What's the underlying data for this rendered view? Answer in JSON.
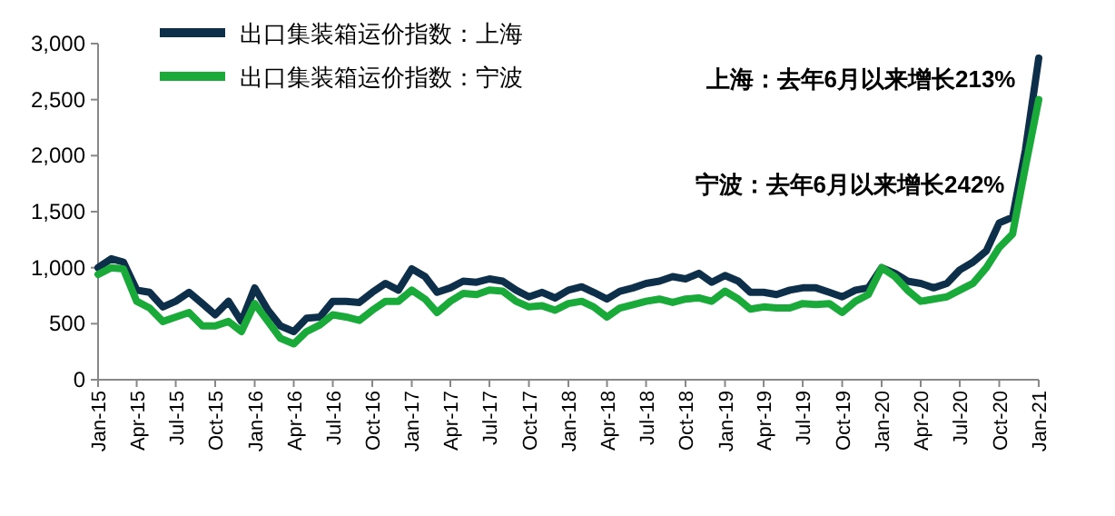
{
  "chart_data": {
    "type": "line",
    "x": [
      "2015-01",
      "2015-02",
      "2015-03",
      "2015-04",
      "2015-05",
      "2015-06",
      "2015-07",
      "2015-08",
      "2015-09",
      "2015-10",
      "2015-11",
      "2015-12",
      "2016-01",
      "2016-02",
      "2016-03",
      "2016-04",
      "2016-05",
      "2016-06",
      "2016-07",
      "2016-08",
      "2016-09",
      "2016-10",
      "2016-11",
      "2016-12",
      "2017-01",
      "2017-02",
      "2017-03",
      "2017-04",
      "2017-05",
      "2017-06",
      "2017-07",
      "2017-08",
      "2017-09",
      "2017-10",
      "2017-11",
      "2017-12",
      "2018-01",
      "2018-02",
      "2018-03",
      "2018-04",
      "2018-05",
      "2018-06",
      "2018-07",
      "2018-08",
      "2018-09",
      "2018-10",
      "2018-11",
      "2018-12",
      "2019-01",
      "2019-02",
      "2019-03",
      "2019-04",
      "2019-05",
      "2019-06",
      "2019-07",
      "2019-08",
      "2019-09",
      "2019-10",
      "2019-11",
      "2019-12",
      "2020-01",
      "2020-02",
      "2020-03",
      "2020-04",
      "2020-05",
      "2020-06",
      "2020-07",
      "2020-08",
      "2020-09",
      "2020-10",
      "2020-11",
      "2020-12",
      "2021-01"
    ],
    "series": [
      {
        "name": "出口集装箱运价指数：上海",
        "color": "#0d2f4a",
        "values": [
          1000,
          1080,
          1050,
          800,
          780,
          650,
          700,
          780,
          680,
          580,
          700,
          520,
          820,
          620,
          480,
          430,
          550,
          560,
          700,
          700,
          690,
          780,
          860,
          800,
          990,
          920,
          780,
          820,
          880,
          870,
          900,
          880,
          800,
          740,
          780,
          730,
          800,
          830,
          780,
          720,
          790,
          820,
          860,
          880,
          920,
          900,
          950,
          870,
          930,
          880,
          780,
          780,
          760,
          800,
          820,
          820,
          780,
          740,
          800,
          820,
          1000,
          950,
          880,
          860,
          820,
          860,
          980,
          1050,
          1150,
          1400,
          1450,
          2050,
          2870
        ]
      },
      {
        "name": "出口集装箱运价指数：宁波",
        "color": "#1aaa3a",
        "values": [
          940,
          1000,
          990,
          700,
          640,
          520,
          560,
          600,
          480,
          480,
          520,
          430,
          680,
          520,
          370,
          320,
          430,
          490,
          580,
          560,
          530,
          620,
          700,
          700,
          800,
          720,
          600,
          700,
          770,
          760,
          800,
          790,
          700,
          650,
          660,
          620,
          680,
          700,
          650,
          560,
          640,
          670,
          700,
          720,
          690,
          720,
          730,
          700,
          790,
          720,
          630,
          650,
          640,
          640,
          680,
          670,
          680,
          600,
          700,
          760,
          1000,
          920,
          800,
          700,
          720,
          740,
          800,
          860,
          1000,
          1180,
          1300,
          1900,
          2500
        ]
      }
    ],
    "xlim": [
      "2015-01",
      "2021-01"
    ],
    "xticks": [
      {
        "value": "2015-01",
        "label": "Jan-15"
      },
      {
        "value": "2015-04",
        "label": "Apr-15"
      },
      {
        "value": "2015-07",
        "label": "Jul-15"
      },
      {
        "value": "2015-10",
        "label": "Oct-15"
      },
      {
        "value": "2016-01",
        "label": "Jan-16"
      },
      {
        "value": "2016-04",
        "label": "Apr-16"
      },
      {
        "value": "2016-07",
        "label": "Jul-16"
      },
      {
        "value": "2016-10",
        "label": "Oct-16"
      },
      {
        "value": "2017-01",
        "label": "Jan-17"
      },
      {
        "value": "2017-04",
        "label": "Apr-17"
      },
      {
        "value": "2017-07",
        "label": "Jul-17"
      },
      {
        "value": "2017-10",
        "label": "Oct-17"
      },
      {
        "value": "2018-01",
        "label": "Jan-18"
      },
      {
        "value": "2018-04",
        "label": "Apr-18"
      },
      {
        "value": "2018-07",
        "label": "Jul-18"
      },
      {
        "value": "2018-10",
        "label": "Oct-18"
      },
      {
        "value": "2019-01",
        "label": "Jan-19"
      },
      {
        "value": "2019-04",
        "label": "Apr-19"
      },
      {
        "value": "2019-07",
        "label": "Jul-19"
      },
      {
        "value": "2019-10",
        "label": "Oct-19"
      },
      {
        "value": "2020-01",
        "label": "Jan-20"
      },
      {
        "value": "2020-04",
        "label": "Apr-20"
      },
      {
        "value": "2020-07",
        "label": "Jul-20"
      },
      {
        "value": "2020-10",
        "label": "Oct-20"
      },
      {
        "value": "2021-01",
        "label": "Jan-21"
      }
    ],
    "ylim": [
      0,
      3000
    ],
    "yticks": [
      {
        "value": 0,
        "label": "0"
      },
      {
        "value": 500,
        "label": "500"
      },
      {
        "value": 1000,
        "label": "1,000"
      },
      {
        "value": 1500,
        "label": "1,500"
      },
      {
        "value": 2000,
        "label": "2,000"
      },
      {
        "value": 2500,
        "label": "2,500"
      },
      {
        "value": 3000,
        "label": "3,000"
      }
    ],
    "annotations": [
      "上海：去年6月以来增长213%",
      "宁波：去年6月以来增长242%"
    ],
    "legend": "top left",
    "grid": false,
    "marker": "none",
    "line_style": "solid"
  }
}
